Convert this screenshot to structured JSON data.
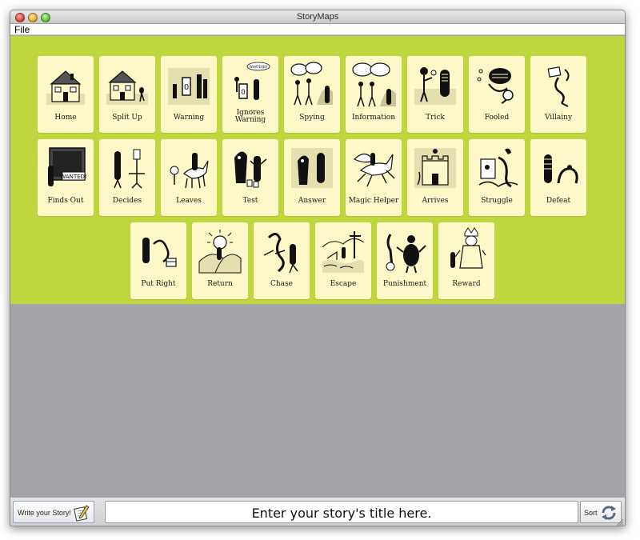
{
  "window": {
    "title": "StoryMaps"
  },
  "menu": {
    "file": "File"
  },
  "cards": {
    "home": "Home",
    "split_up": "Split Up",
    "warning": "Warning",
    "ignores_warning_1": "Ignores",
    "ignores_warning_2": "Warning",
    "ignores_bubble": "WHATEVER",
    "spying": "Spying",
    "information": "Information",
    "trick": "Trick",
    "fooled": "Fooled",
    "villainy": "Villainy",
    "finds_out": "Finds Out",
    "finds_out_poster": "WANTED!",
    "decides": "Decides",
    "leaves": "Leaves",
    "test": "Test",
    "answer": "Answer",
    "magic_helper": "Magic Helper",
    "arrives": "Arrives",
    "struggle": "Struggle",
    "defeat": "Defeat",
    "put_right": "Put Right",
    "return": "Return",
    "chase": "Chase",
    "escape": "Escape",
    "punishment": "Punishment",
    "reward": "Reward"
  },
  "footer": {
    "write_label": "Write your Story!",
    "title_placeholder": "Enter your story's title here.",
    "sort_label": "Sort"
  },
  "colors": {
    "board": "#bfd63f",
    "card": "#fdf8c7",
    "background": "#a3a3a8"
  }
}
